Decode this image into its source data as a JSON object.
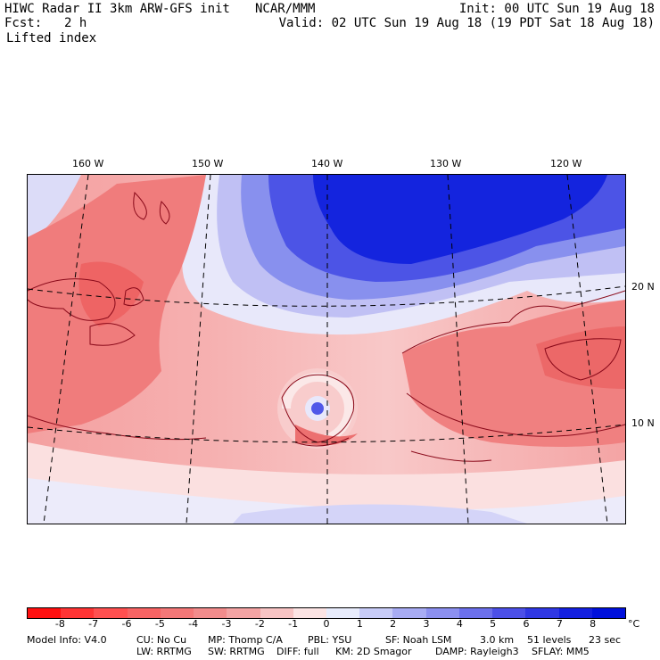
{
  "header": {
    "title": "HIWC Radar II 3km ARW-GFS init",
    "org": "NCAR/MMM",
    "init": "Init: 00 UTC Sun 19 Aug 18",
    "fcst_label": "Fcst:",
    "fcst_value": "2 h",
    "valid": "Valid: 02 UTC Sun 19 Aug 18 (19 PDT Sat 18 Aug 18)",
    "field": "Lifted index"
  },
  "map": {
    "lon_labels": [
      "160 W",
      "150 W",
      "140 W",
      "130 W",
      "120 W"
    ],
    "lat_labels": [
      "20 N",
      "10 N"
    ]
  },
  "colorbar": {
    "ticks": [
      "-8",
      "-7",
      "-6",
      "-5",
      "-4",
      "-3",
      "-2",
      "-1",
      "0",
      "1",
      "2",
      "3",
      "4",
      "5",
      "6",
      "7",
      "8"
    ],
    "unit": "°C",
    "colors": [
      "#ff1010",
      "#ff3434",
      "#ff5050",
      "#f86464",
      "#f47878",
      "#f28c8c",
      "#f4a4a4",
      "#f8c4c4",
      "#fce4e4",
      "#e8ecfc",
      "#c8ccf8",
      "#a8acf4",
      "#8c90f0",
      "#6c70ec",
      "#4c50e8",
      "#3038e4",
      "#1420e0",
      "#0010dc"
    ]
  },
  "info": {
    "line1": {
      "model": "Model Info: V4.0",
      "cu": "CU: No Cu",
      "mp": "MP: Thomp C/A",
      "pbl": "PBL: YSU",
      "sf": "SF: Noah LSM",
      "res": "3.0 km",
      "levels": "51 levels",
      "dt": "23 sec"
    },
    "line2": {
      "lw": "LW: RRTMG",
      "sw": "SW: RRTMG",
      "diff": "DIFF: full",
      "km": "KM: 2D Smagor",
      "damp": "DAMP: Rayleigh3",
      "sflay": "SFLAY: MM5"
    }
  }
}
